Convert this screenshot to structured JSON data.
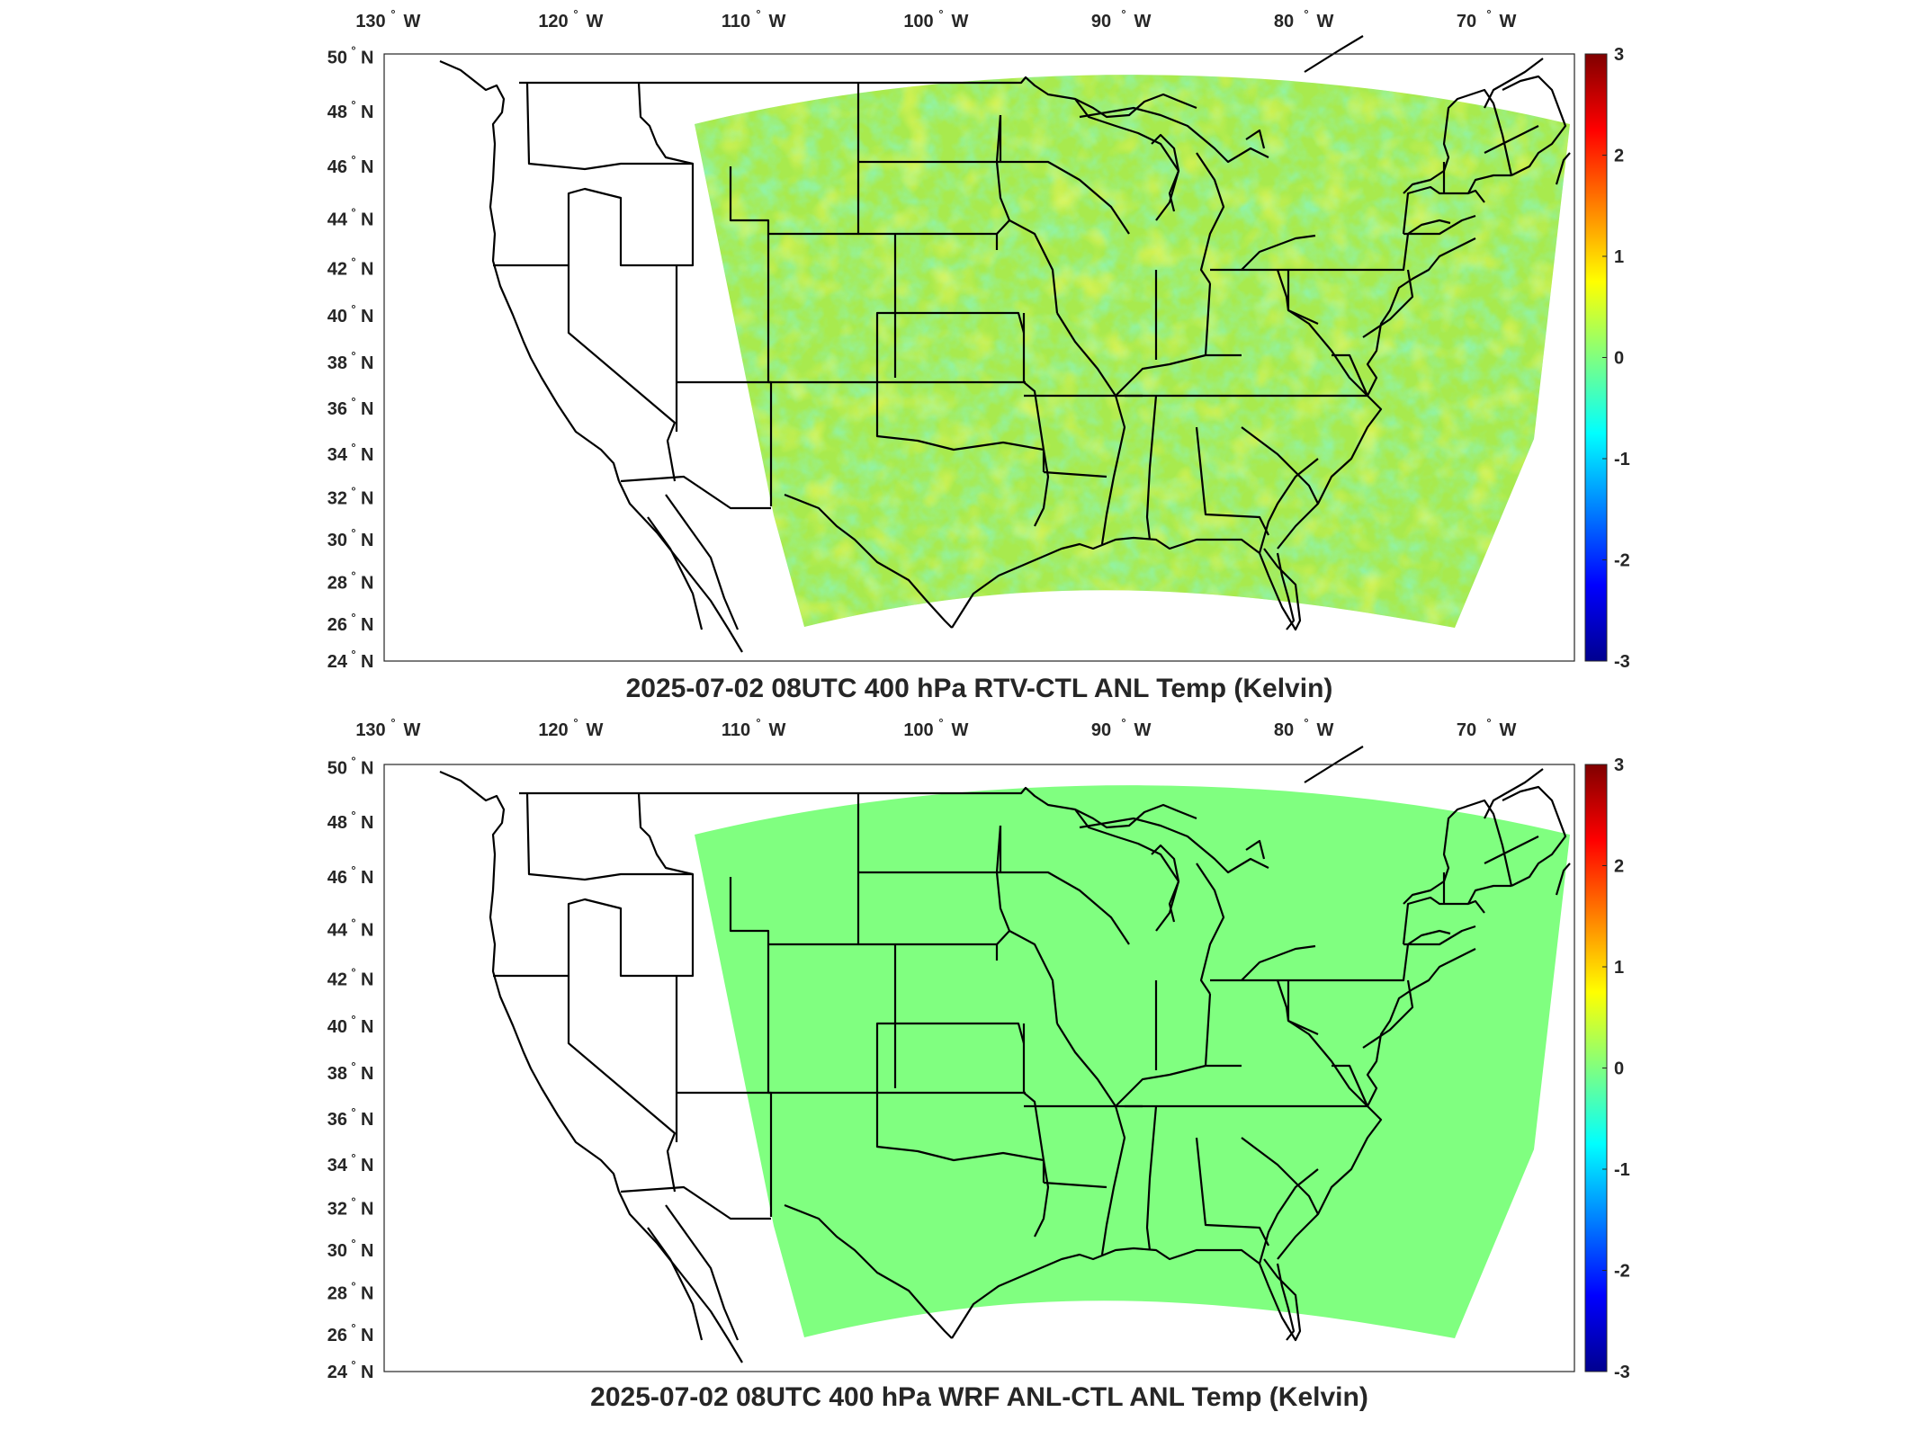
{
  "panels": [
    {
      "title": "2025-07-02 08UTC 400 hPa RTV-CTL ANL Temp (Kelvin)",
      "field": "varied",
      "base_color": "#a8ea4e",
      "lon_ticks": [
        "130",
        "120",
        "110",
        "100",
        "90",
        "80",
        "70"
      ],
      "lon_hemisphere": "W",
      "lat_ticks": [
        "50",
        "48",
        "46",
        "44",
        "42",
        "40",
        "38",
        "36",
        "34",
        "32",
        "30",
        "28",
        "26",
        "24"
      ],
      "lat_hemisphere": "N",
      "colorbar_ticks": [
        "3",
        "2",
        "1",
        "0",
        "-1",
        "-2",
        "-3"
      ]
    },
    {
      "title": "2025-07-02 08UTC 400 hPa WRF ANL-CTL ANL Temp (Kelvin)",
      "field": "uniform",
      "base_color": "#80ff80",
      "lon_ticks": [
        "130",
        "120",
        "110",
        "100",
        "90",
        "80",
        "70"
      ],
      "lon_hemisphere": "W",
      "lat_ticks": [
        "50",
        "48",
        "46",
        "44",
        "42",
        "40",
        "38",
        "36",
        "34",
        "32",
        "30",
        "28",
        "26",
        "24"
      ],
      "lat_hemisphere": "N",
      "colorbar_ticks": [
        "3",
        "2",
        "1",
        "0",
        "-1",
        "-2",
        "-3"
      ]
    }
  ],
  "colormap": [
    "#00008f",
    "#0000ff",
    "#0080ff",
    "#00ffff",
    "#80ff80",
    "#ffff00",
    "#ff8000",
    "#ff0000",
    "#800000"
  ],
  "colorbar_range": [
    -3,
    3
  ],
  "lat_range": [
    24,
    50
  ],
  "lon_range": [
    -130,
    -66
  ]
}
